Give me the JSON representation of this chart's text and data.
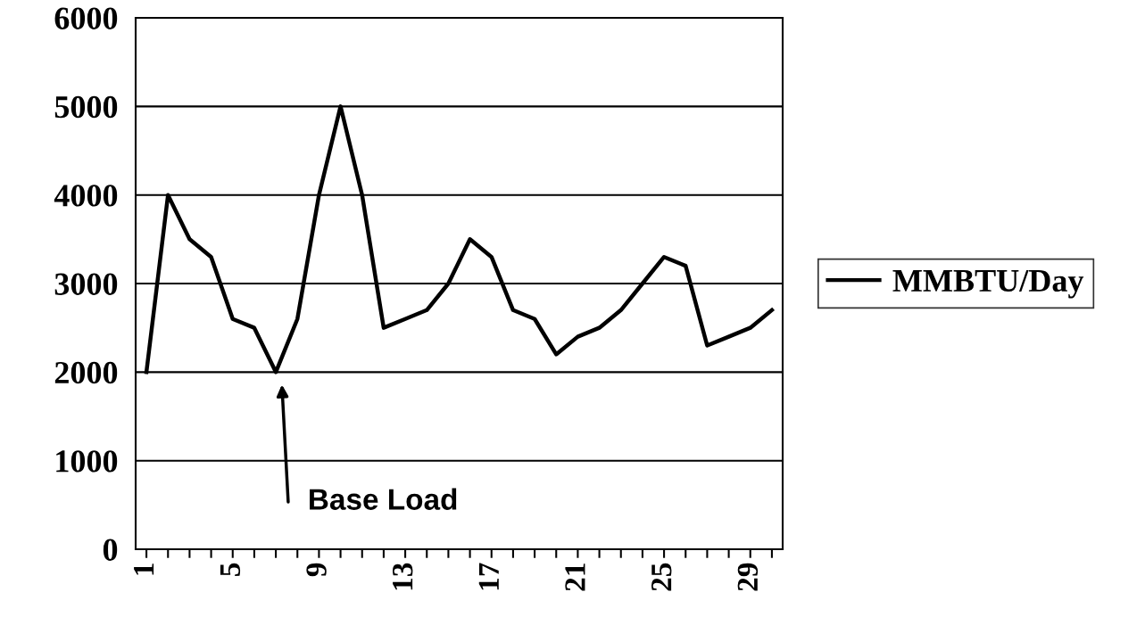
{
  "chart_data": {
    "type": "line",
    "x": [
      1,
      2,
      3,
      4,
      5,
      6,
      7,
      8,
      9,
      10,
      11,
      12,
      13,
      14,
      15,
      16,
      17,
      18,
      19,
      20,
      21,
      22,
      23,
      24,
      25,
      26,
      27,
      28,
      29,
      30
    ],
    "series": [
      {
        "name": "MMBTU/Day",
        "color": "#000000",
        "values": [
          2000,
          4000,
          3500,
          3300,
          2600,
          2500,
          2000,
          2600,
          4000,
          5000,
          4000,
          2500,
          2600,
          2700,
          3000,
          3500,
          3300,
          2700,
          2600,
          2200,
          2400,
          2500,
          2700,
          3000,
          3300,
          3200,
          2300,
          2400,
          2500,
          2700
        ]
      }
    ],
    "xlim": [
      0.5,
      30.5
    ],
    "xticks": [
      1,
      {
        "value": 2,
        "label": null
      },
      {
        "value": 3,
        "label": null
      },
      {
        "value": 4,
        "label": null
      },
      5,
      {
        "value": 6,
        "label": null
      },
      {
        "value": 7,
        "label": null
      },
      {
        "value": 8,
        "label": null
      },
      9,
      {
        "value": 10,
        "label": null
      },
      {
        "value": 11,
        "label": null
      },
      {
        "value": 12,
        "label": null
      },
      13,
      {
        "value": 14,
        "label": null
      },
      {
        "value": 15,
        "label": null
      },
      {
        "value": 16,
        "label": null
      },
      17,
      {
        "value": 18,
        "label": null
      },
      {
        "value": 19,
        "label": null
      },
      {
        "value": 20,
        "label": null
      },
      21,
      {
        "value": 22,
        "label": null
      },
      {
        "value": 23,
        "label": null
      },
      {
        "value": 24,
        "label": null
      },
      25,
      {
        "value": 26,
        "label": null
      },
      {
        "value": 27,
        "label": null
      },
      {
        "value": 28,
        "label": null
      },
      29,
      {
        "value": 30,
        "label": null
      }
    ],
    "ylim": [
      0,
      6000
    ],
    "yticks": [
      0,
      1000,
      2000,
      3000,
      4000,
      5000,
      6000
    ],
    "grid": "y",
    "legend": "right",
    "marker": "none",
    "line_style": "solid",
    "annotations": [
      "Base Load"
    ]
  }
}
